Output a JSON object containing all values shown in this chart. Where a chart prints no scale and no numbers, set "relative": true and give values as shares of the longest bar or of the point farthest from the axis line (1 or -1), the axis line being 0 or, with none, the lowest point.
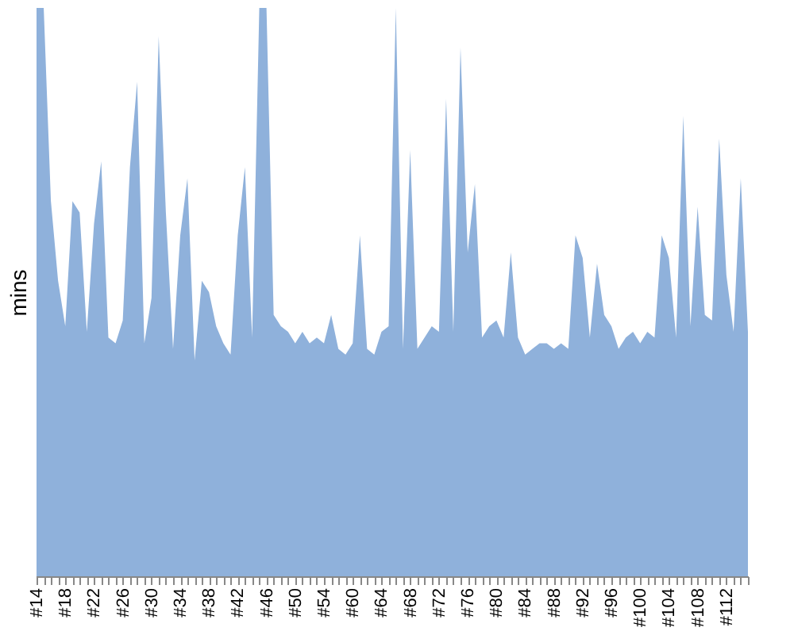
{
  "chart_data": {
    "type": "area",
    "ylabel": "mins",
    "relative": true,
    "grid": false,
    "categories": [
      "#14",
      null,
      null,
      null,
      "#18",
      null,
      null,
      null,
      "#22",
      null,
      null,
      null,
      "#26",
      null,
      null,
      null,
      "#30",
      null,
      null,
      null,
      "#34",
      null,
      null,
      null,
      "#38",
      null,
      null,
      null,
      "#42",
      null,
      null,
      null,
      "#46",
      null,
      null,
      null,
      "#50",
      null,
      null,
      null,
      "#54",
      null,
      null,
      null,
      "#60",
      null,
      null,
      null,
      "#64",
      null,
      null,
      null,
      "#68",
      null,
      null,
      null,
      "#72",
      null,
      null,
      null,
      "#76",
      null,
      null,
      null,
      "#80",
      null,
      null,
      null,
      "#84",
      null,
      null,
      null,
      "#88",
      null,
      null,
      null,
      "#92",
      null,
      null,
      null,
      "#96",
      null,
      null,
      null,
      "#100",
      null,
      null,
      null,
      "#104",
      null,
      null,
      null,
      "#108",
      null,
      null,
      null,
      "#112",
      null,
      null,
      null
    ],
    "series": [
      {
        "color": "#8fb1db",
        "values": [
          1,
          1,
          0.66,
          0.52,
          0.44,
          0.66,
          0.64,
          0.43,
          0.62,
          0.73,
          0.42,
          0.41,
          0.45,
          0.72,
          0.87,
          0.41,
          0.49,
          0.95,
          0.64,
          0.4,
          0.6,
          0.7,
          0.38,
          0.52,
          0.5,
          0.44,
          0.41,
          0.39,
          0.6,
          0.72,
          0.42,
          1,
          1,
          0.46,
          0.44,
          0.43,
          0.41,
          0.43,
          0.41,
          0.42,
          0.41,
          0.46,
          0.4,
          0.39,
          0.41,
          0.6,
          0.4,
          0.39,
          0.43,
          0.44,
          1,
          0.4,
          0.75,
          0.4,
          0.42,
          0.44,
          0.43,
          0.84,
          0.43,
          0.93,
          0.57,
          0.69,
          0.42,
          0.44,
          0.45,
          0.42,
          0.57,
          0.42,
          0.39,
          0.4,
          0.41,
          0.41,
          0.4,
          0.41,
          0.4,
          0.6,
          0.56,
          0.42,
          0.55,
          0.46,
          0.44,
          0.4,
          0.42,
          0.43,
          0.41,
          0.43,
          0.42,
          0.6,
          0.56,
          0.42,
          0.81,
          0.44,
          0.65,
          0.46,
          0.45,
          0.77,
          0.53,
          0.43,
          0.7,
          0.43
        ]
      }
    ]
  }
}
